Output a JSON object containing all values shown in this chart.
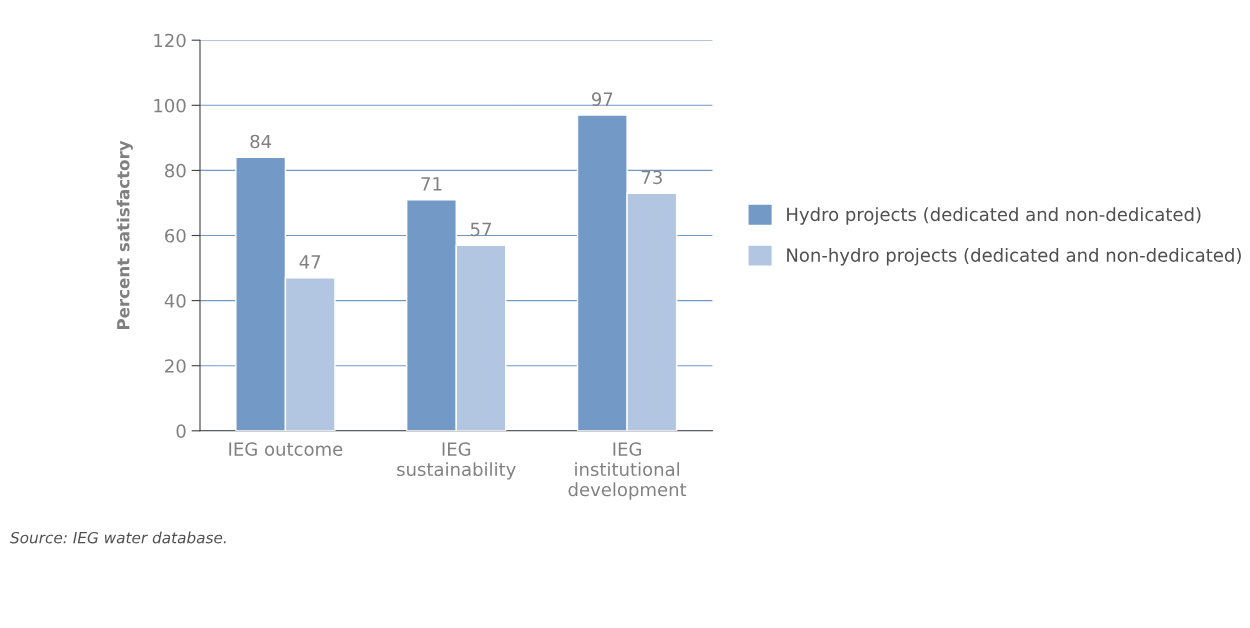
{
  "chart_data": {
    "type": "bar",
    "ylabel": "Percent satisfactory",
    "categories": [
      "IEG outcome",
      "IEG\nsustainability",
      "IEG\ninstitutional\ndevelopment"
    ],
    "series": [
      {
        "name": "Hydro projects (dedicated and non-dedicated)",
        "color": "#7399c6",
        "values": [
          84,
          71,
          97
        ]
      },
      {
        "name": "Non-hydro projects (dedicated and non-dedicated)",
        "color": "#b3c6e1",
        "values": [
          47,
          57,
          73
        ]
      }
    ],
    "ylim": [
      0,
      120
    ],
    "yticks": [
      0,
      20,
      40,
      60,
      80,
      100,
      120
    ],
    "grid": "y",
    "legend": "right",
    "data_labels": true,
    "annotations": [
      "Source: IEG water database."
    ]
  }
}
